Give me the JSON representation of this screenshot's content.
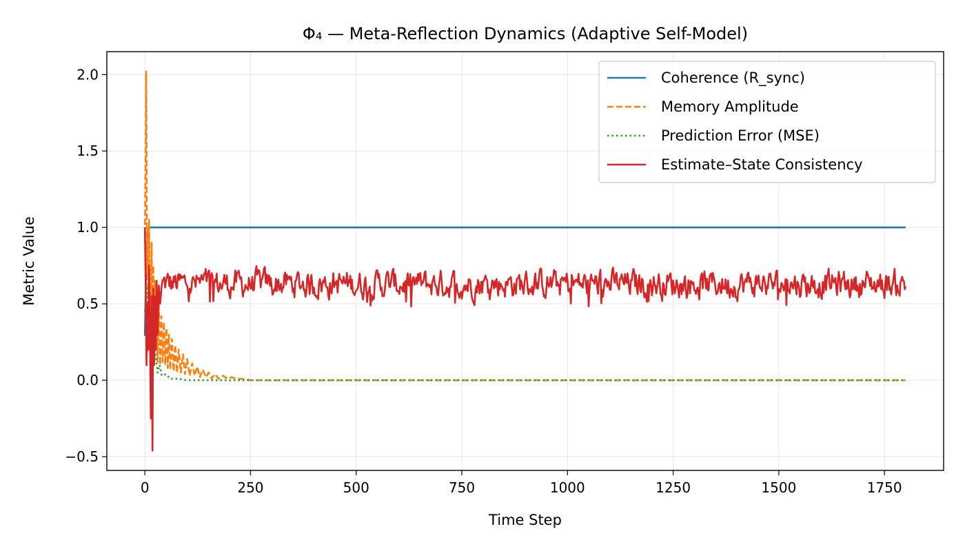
{
  "chart_data": {
    "type": "line",
    "title": "Φ₄ — Meta-Reflection Dynamics (Adaptive Self-Model)",
    "xlabel": "Time Step",
    "ylabel": "Metric Value",
    "xlim": [
      -90,
      1890
    ],
    "ylim": [
      -0.59,
      2.15
    ],
    "xticks": [
      0,
      250,
      500,
      750,
      1000,
      1250,
      1500,
      1750
    ],
    "xtick_labels": [
      "0",
      "250",
      "500",
      "750",
      "1000",
      "1250",
      "1500",
      "1750"
    ],
    "yticks": [
      -0.5,
      0.0,
      0.5,
      1.0,
      1.5,
      2.0
    ],
    "ytick_labels": [
      "−0.5",
      "0.0",
      "0.5",
      "1.0",
      "1.5",
      "2.0"
    ],
    "grid": true,
    "legend_position": "upper right",
    "series": [
      {
        "name": "Coherence (R_sync)",
        "color": "#1f77b4",
        "style": "solid",
        "x": [
          0,
          2,
          4,
          6,
          8,
          10,
          12,
          14,
          20,
          100,
          500,
          1000,
          1500,
          1800
        ],
        "y": [
          0.29,
          0.6,
          0.85,
          0.95,
          0.99,
          1.0,
          1.0,
          1.0,
          1.0,
          1.0,
          1.0,
          1.0,
          1.0,
          1.0
        ]
      },
      {
        "name": "Memory Amplitude",
        "color": "#ff7f0e",
        "style": "dashed",
        "x": [
          0,
          2,
          3,
          4,
          5,
          6,
          8,
          10,
          12,
          14,
          16,
          18,
          20,
          22,
          24,
          26,
          28,
          30,
          33,
          36,
          39,
          42,
          45,
          48,
          51,
          54,
          57,
          60,
          64,
          68,
          72,
          76,
          80,
          85,
          90,
          95,
          100,
          106,
          112,
          118,
          124,
          130,
          137,
          144,
          151,
          158,
          165,
          175,
          185,
          195,
          205,
          215,
          230,
          250,
          300,
          500,
          1000,
          1500,
          1800
        ],
        "y": [
          0.9,
          1.6,
          2.02,
          1.5,
          0.7,
          1.0,
          0.3,
          1.05,
          0.55,
          0.4,
          0.9,
          0.25,
          0.75,
          0.15,
          0.65,
          0.2,
          0.55,
          0.12,
          0.5,
          0.1,
          0.42,
          0.12,
          0.38,
          0.1,
          0.34,
          0.08,
          0.3,
          0.07,
          0.27,
          0.06,
          0.23,
          0.05,
          0.2,
          0.05,
          0.17,
          0.04,
          0.14,
          0.03,
          0.11,
          0.03,
          0.09,
          0.02,
          0.07,
          0.02,
          0.05,
          0.01,
          0.04,
          0.01,
          0.03,
          0.01,
          0.02,
          0.01,
          0.01,
          0.0,
          0.0,
          0.0,
          0.0,
          0.0,
          0.0
        ]
      },
      {
        "name": "Prediction Error (MSE)",
        "color": "#2ca02c",
        "style": "dotted",
        "x": [
          0,
          5,
          10,
          15,
          20,
          25,
          30,
          35,
          40,
          50,
          60,
          80,
          100,
          150,
          250,
          500,
          1000,
          1500,
          1800
        ],
        "y": [
          0.45,
          0.6,
          0.35,
          0.28,
          0.12,
          0.18,
          0.05,
          0.1,
          0.03,
          0.04,
          0.01,
          0.01,
          0.0,
          0.0,
          0.0,
          0.0,
          0.0,
          0.0,
          0.0
        ]
      },
      {
        "name": "Estimate–State Consistency",
        "color": "#d62728",
        "style": "solid",
        "noise_amplitude": 0.1,
        "baseline": 0.63,
        "x": [
          0,
          2,
          4,
          6,
          8,
          10,
          12,
          14,
          16,
          18,
          20,
          22,
          24,
          26,
          28,
          30,
          33,
          36,
          40
        ],
        "y": [
          1.0,
          0.6,
          0.1,
          0.5,
          0.2,
          0.75,
          0.3,
          -0.25,
          0.55,
          -0.46,
          0.6,
          0.1,
          0.55,
          0.2,
          0.65,
          0.3,
          0.62,
          0.5,
          0.62
        ]
      }
    ]
  }
}
